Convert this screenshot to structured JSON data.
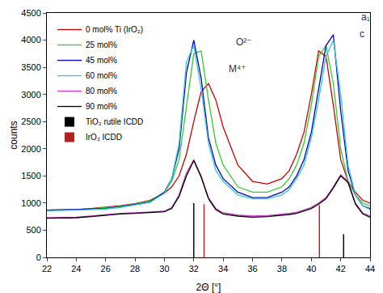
{
  "chart_data": {
    "type": "line",
    "x_label": "2Θ [°]",
    "y_label": "counts",
    "x": [
      22,
      23,
      24,
      25,
      26,
      27,
      28,
      29,
      30,
      30.5,
      31,
      31.5,
      32,
      32.5,
      33,
      33.5,
      34,
      35,
      36,
      37,
      38,
      38.5,
      39,
      39.5,
      40,
      40.5,
      41,
      41.5,
      42,
      42.5,
      43,
      43.5,
      44
    ],
    "series": [
      {
        "name": "0 mol% Ti (IrO₂)",
        "color": "#cc0000",
        "values": [
          870,
          870,
          880,
          900,
          920,
          950,
          990,
          1050,
          1180,
          1300,
          1500,
          1900,
          2500,
          3050,
          3200,
          2900,
          2400,
          1700,
          1400,
          1350,
          1450,
          1600,
          1900,
          2300,
          3000,
          3800,
          3700,
          2800,
          1800,
          1400,
          1200,
          1050,
          1000
        ]
      },
      {
        "name": "25 mol%",
        "color": "#33cc33",
        "values": [
          870,
          870,
          880,
          890,
          910,
          940,
          980,
          1040,
          1200,
          1400,
          1800,
          2800,
          3750,
          3800,
          2900,
          2100,
          1700,
          1300,
          1200,
          1200,
          1300,
          1450,
          1700,
          2100,
          2800,
          3700,
          3900,
          3200,
          2000,
          1400,
          1150,
          1000,
          950
        ]
      },
      {
        "name": "45 mol%",
        "color": "#0000cc",
        "values": [
          870,
          870,
          880,
          890,
          900,
          930,
          970,
          1020,
          1200,
          1450,
          2000,
          3400,
          4000,
          3300,
          2200,
          1700,
          1450,
          1200,
          1100,
          1100,
          1200,
          1300,
          1500,
          1800,
          2300,
          3100,
          3900,
          4100,
          2700,
          1600,
          1150,
          950,
          900
        ]
      },
      {
        "name": "60 mol%",
        "color": "#33cccc",
        "values": [
          860,
          860,
          870,
          880,
          890,
          920,
          960,
          1010,
          1180,
          1450,
          2100,
          3600,
          3900,
          3100,
          2100,
          1600,
          1400,
          1150,
          1080,
          1080,
          1150,
          1250,
          1450,
          1700,
          2200,
          2900,
          3700,
          4000,
          3000,
          1700,
          1150,
          950,
          880
        ]
      },
      {
        "name": "80 mol%",
        "color": "#cc33cc",
        "values": [
          730,
          730,
          740,
          760,
          790,
          810,
          820,
          830,
          850,
          920,
          1150,
          1550,
          1800,
          1500,
          1100,
          900,
          820,
          780,
          760,
          770,
          790,
          810,
          830,
          870,
          920,
          1000,
          1100,
          1300,
          1520,
          1400,
          1000,
          820,
          760
        ]
      },
      {
        "name": "90 mol%",
        "color": "#000000",
        "values": [
          720,
          720,
          730,
          750,
          780,
          800,
          810,
          820,
          840,
          900,
          1120,
          1500,
          1780,
          1480,
          1080,
          880,
          800,
          760,
          740,
          750,
          770,
          790,
          810,
          850,
          900,
          980,
          1080,
          1280,
          1500,
          1380,
          980,
          800,
          740
        ]
      },
      {
        "name": "TiO₂ rutile ICDD",
        "color": "#000000",
        "type": "bar",
        "x": [
          32.0,
          42.2
        ],
        "values": [
          1000,
          430
        ]
      },
      {
        "name": "IrO₂ ICDD",
        "color": "#b22222",
        "type": "bar",
        "x": [
          32.7,
          40.55
        ],
        "values": [
          980,
          960
        ]
      }
    ],
    "annotations": [
      "O²⁻",
      "M⁴⁺",
      "a₁",
      "c"
    ],
    "xlim": [
      22,
      44
    ],
    "xticks": [
      22,
      24,
      26,
      28,
      30,
      32,
      34,
      36,
      38,
      40,
      42,
      44
    ],
    "ylim": [
      0,
      4500
    ],
    "yticks": [
      0,
      500,
      1000,
      1500,
      2000,
      2500,
      3000,
      3500,
      4000,
      4500
    ],
    "grid": false,
    "legend": "top-left"
  }
}
